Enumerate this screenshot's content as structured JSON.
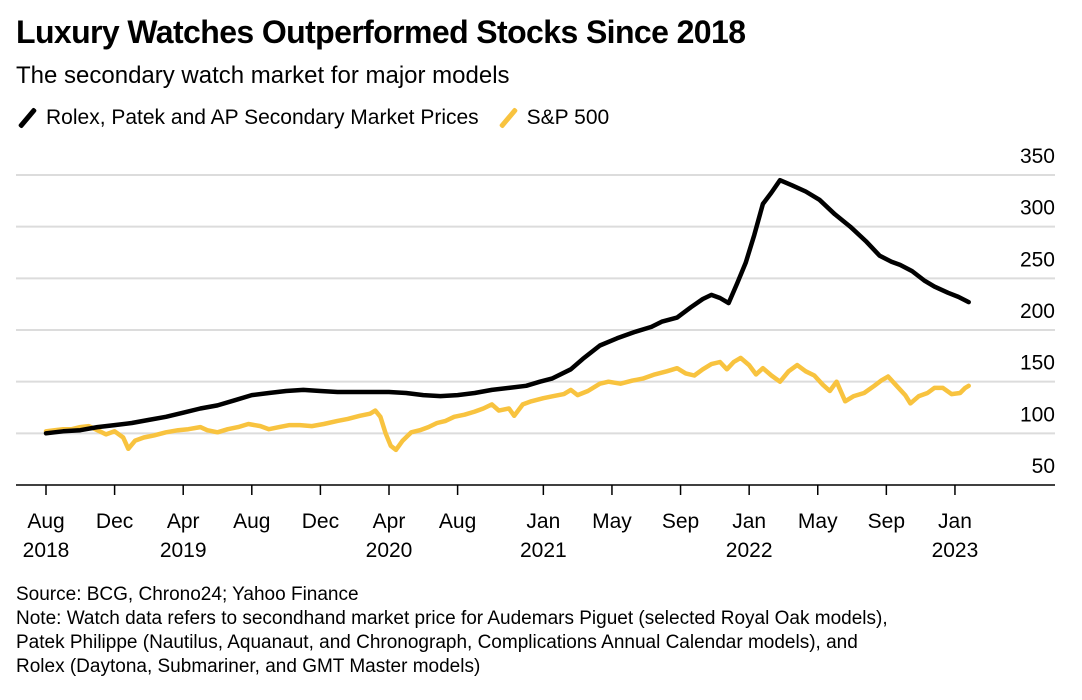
{
  "chart_data": {
    "type": "line",
    "title": "Luxury Watches Outperformed Stocks Since 2018",
    "subtitle": "The secondary watch market for major models",
    "xlabel": "",
    "ylabel": "",
    "x_unit": "months since Aug 2018",
    "ylim": [
      50,
      350
    ],
    "yticks": [
      50,
      100,
      150,
      200,
      250,
      300,
      350
    ],
    "grid": true,
    "y_axis_side": "right",
    "legend_placement": "top-left",
    "xticks": [
      {
        "m": 0,
        "month": "Aug",
        "year": "2018"
      },
      {
        "m": 4,
        "month": "Dec",
        "year": ""
      },
      {
        "m": 8,
        "month": "Apr",
        "year": "2019"
      },
      {
        "m": 12,
        "month": "Aug",
        "year": ""
      },
      {
        "m": 16,
        "month": "Dec",
        "year": ""
      },
      {
        "m": 20,
        "month": "Apr",
        "year": "2020"
      },
      {
        "m": 24,
        "month": "Aug",
        "year": ""
      },
      {
        "m": 29,
        "month": "Jan",
        "year": "2021"
      },
      {
        "m": 33,
        "month": "May",
        "year": ""
      },
      {
        "m": 37,
        "month": "Sep",
        "year": ""
      },
      {
        "m": 41,
        "month": "Jan",
        "year": "2022"
      },
      {
        "m": 45,
        "month": "May",
        "year": ""
      },
      {
        "m": 49,
        "month": "Sep",
        "year": ""
      },
      {
        "m": 53,
        "month": "Jan",
        "year": "2023"
      }
    ],
    "series": [
      {
        "name": "Rolex, Patek and AP Secondary Market Prices",
        "color": "#000000",
        "points": [
          [
            0,
            100
          ],
          [
            1,
            102
          ],
          [
            2,
            103
          ],
          [
            3,
            106
          ],
          [
            4,
            108
          ],
          [
            5,
            110
          ],
          [
            6,
            113
          ],
          [
            7,
            116
          ],
          [
            8,
            120
          ],
          [
            9,
            124
          ],
          [
            10,
            127
          ],
          [
            11,
            132
          ],
          [
            12,
            137
          ],
          [
            13,
            139
          ],
          [
            14,
            141
          ],
          [
            15,
            142
          ],
          [
            16,
            141
          ],
          [
            17,
            140
          ],
          [
            18,
            140
          ],
          [
            19,
            140
          ],
          [
            20,
            140
          ],
          [
            21,
            139
          ],
          [
            22,
            137
          ],
          [
            23,
            136
          ],
          [
            24,
            137
          ],
          [
            25,
            139
          ],
          [
            26,
            142
          ],
          [
            27,
            144
          ],
          [
            28,
            146
          ],
          [
            28.8,
            150
          ],
          [
            29.5,
            153
          ],
          [
            30.6,
            162
          ],
          [
            31.3,
            172
          ],
          [
            32.3,
            185
          ],
          [
            33.3,
            192
          ],
          [
            34.3,
            198
          ],
          [
            35.3,
            203
          ],
          [
            35.9,
            208
          ],
          [
            36.8,
            212
          ],
          [
            37.6,
            222
          ],
          [
            38.3,
            230
          ],
          [
            38.8,
            234
          ],
          [
            39.3,
            231
          ],
          [
            39.8,
            226
          ],
          [
            40.3,
            245
          ],
          [
            40.8,
            265
          ],
          [
            41.3,
            292
          ],
          [
            41.8,
            322
          ],
          [
            42.3,
            333
          ],
          [
            42.8,
            345
          ],
          [
            43.5,
            340
          ],
          [
            44.3,
            334
          ],
          [
            45.1,
            326
          ],
          [
            46.0,
            312
          ],
          [
            46.9,
            300
          ],
          [
            47.8,
            286
          ],
          [
            48.6,
            272
          ],
          [
            49.3,
            266
          ],
          [
            49.8,
            263
          ],
          [
            50.5,
            257
          ],
          [
            51.2,
            248
          ],
          [
            51.8,
            242
          ],
          [
            52.6,
            236
          ],
          [
            53.2,
            232
          ],
          [
            53.8,
            227
          ]
        ]
      },
      {
        "name": "S&P 500",
        "color": "#F8C33F",
        "points": [
          [
            0,
            102
          ],
          [
            0.5,
            103
          ],
          [
            1,
            104
          ],
          [
            1.5,
            104
          ],
          [
            2,
            106
          ],
          [
            2.5,
            107
          ],
          [
            3,
            103
          ],
          [
            3.5,
            99
          ],
          [
            4,
            102
          ],
          [
            4.5,
            96
          ],
          [
            4.8,
            85
          ],
          [
            5.2,
            93
          ],
          [
            5.7,
            96
          ],
          [
            6.3,
            98
          ],
          [
            7,
            101
          ],
          [
            7.7,
            103
          ],
          [
            8.3,
            104
          ],
          [
            9,
            106
          ],
          [
            9.4,
            103
          ],
          [
            10,
            101
          ],
          [
            10.6,
            104
          ],
          [
            11.2,
            106
          ],
          [
            11.8,
            109
          ],
          [
            12.5,
            107
          ],
          [
            13,
            104
          ],
          [
            13.6,
            106
          ],
          [
            14.2,
            108
          ],
          [
            14.8,
            108
          ],
          [
            15.5,
            107
          ],
          [
            16.2,
            109
          ],
          [
            17,
            112
          ],
          [
            17.6,
            114
          ],
          [
            18.3,
            117
          ],
          [
            18.9,
            119
          ],
          [
            19.2,
            122
          ],
          [
            19.5,
            116
          ],
          [
            19.8,
            100
          ],
          [
            20.1,
            88
          ],
          [
            20.4,
            84
          ],
          [
            20.8,
            93
          ],
          [
            21.3,
            101
          ],
          [
            21.8,
            103
          ],
          [
            22.3,
            106
          ],
          [
            22.8,
            110
          ],
          [
            23.3,
            112
          ],
          [
            23.8,
            116
          ],
          [
            24.4,
            118
          ],
          [
            25,
            121
          ],
          [
            25.5,
            124
          ],
          [
            26,
            128
          ],
          [
            26.4,
            122
          ],
          [
            27,
            124
          ],
          [
            27.3,
            117
          ],
          [
            27.8,
            128
          ],
          [
            28.3,
            131
          ],
          [
            29,
            134
          ],
          [
            29.6,
            136
          ],
          [
            30.2,
            138
          ],
          [
            30.6,
            142
          ],
          [
            31,
            137
          ],
          [
            31.6,
            141
          ],
          [
            32.3,
            148
          ],
          [
            32.8,
            150
          ],
          [
            33.5,
            148
          ],
          [
            34.2,
            151
          ],
          [
            34.8,
            153
          ],
          [
            35.5,
            157
          ],
          [
            36.2,
            160
          ],
          [
            36.8,
            163
          ],
          [
            37.3,
            158
          ],
          [
            37.8,
            156
          ],
          [
            38.3,
            162
          ],
          [
            38.8,
            167
          ],
          [
            39.3,
            169
          ],
          [
            39.7,
            162
          ],
          [
            40.1,
            169
          ],
          [
            40.5,
            173
          ],
          [
            41,
            166
          ],
          [
            41.4,
            157
          ],
          [
            41.8,
            163
          ],
          [
            42.3,
            156
          ],
          [
            42.8,
            150
          ],
          [
            43.3,
            160
          ],
          [
            43.8,
            166
          ],
          [
            44.3,
            160
          ],
          [
            44.8,
            156
          ],
          [
            45.3,
            147
          ],
          [
            45.7,
            141
          ],
          [
            46.1,
            150
          ],
          [
            46.6,
            131
          ],
          [
            47.1,
            136
          ],
          [
            47.7,
            139
          ],
          [
            48.3,
            146
          ],
          [
            48.7,
            151
          ],
          [
            49.1,
            155
          ],
          [
            49.6,
            146
          ],
          [
            50.1,
            137
          ],
          [
            50.4,
            129
          ],
          [
            50.9,
            136
          ],
          [
            51.4,
            139
          ],
          [
            51.8,
            144
          ],
          [
            52.3,
            144
          ],
          [
            52.8,
            138
          ],
          [
            53.3,
            139
          ],
          [
            53.6,
            144
          ],
          [
            53.8,
            146
          ]
        ]
      }
    ]
  },
  "legend": [
    {
      "label": "Rolex, Patek and AP Secondary Market Prices",
      "color": "#000000"
    },
    {
      "label": "S&P 500",
      "color": "#F8C33F"
    }
  ],
  "footer": {
    "source": "Source: BCG, Chrono24; Yahoo Finance",
    "note_lines": [
      "Note: Watch data refers to secondhand market price for Audemars Piguet (selected Royal Oak models),",
      "Patek Philippe (Nautilus, Aquanaut, and Chronograph, Complications Annual Calendar models), and",
      "Rolex (Daytona, Submariner, and GMT Master models)"
    ]
  }
}
